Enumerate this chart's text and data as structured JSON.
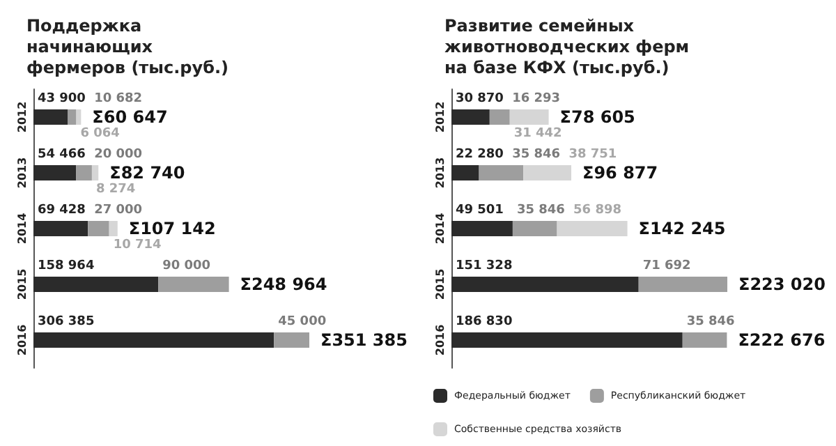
{
  "chart_data": [
    {
      "type": "bar",
      "orientation": "horizontal",
      "stacked": true,
      "title": "Поддержка\nначинающих\nфермеров (тыс.руб.)",
      "categories": [
        "2012",
        "2013",
        "2014",
        "2015",
        "2016"
      ],
      "tick_labels": "y",
      "data_labels": true,
      "grid": false,
      "series": [
        {
          "color": "#2b2b2b",
          "values": [
            43900,
            54466,
            69428,
            158964,
            306385
          ]
        },
        {
          "color": "#9e9e9e",
          "values": [
            10682,
            20000,
            27000,
            90000,
            45000
          ]
        },
        {
          "color": "#d6d6d6",
          "values": [
            6064,
            8274,
            10714,
            null,
            null
          ]
        }
      ],
      "totals": [
        "Σ60 647",
        "Σ82 740",
        "Σ107 142",
        "Σ248 964",
        "Σ351 385"
      ]
    },
    {
      "type": "bar",
      "orientation": "horizontal",
      "stacked": true,
      "title": "Развитие семейных\nживотноводческих ферм\nна базе КФХ (тыс.руб.)",
      "categories": [
        "2012",
        "2013",
        "2014",
        "2015",
        "2016"
      ],
      "tick_labels": "y",
      "data_labels": true,
      "legend": "bottom",
      "grid": false,
      "series": [
        {
          "name": "Федеральный бюджет",
          "color": "#2b2b2b",
          "values": [
            30870,
            22280,
            49501,
            151328,
            186830
          ]
        },
        {
          "name": "Республиканский бюджет",
          "color": "#9e9e9e",
          "values": [
            16293,
            35846,
            35846,
            71692,
            35846
          ]
        },
        {
          "name": "Собственные средства хозяйств",
          "color": "#d6d6d6",
          "values": [
            31442,
            38751,
            56898,
            null,
            null
          ]
        }
      ],
      "totals": [
        "Σ78 605",
        "Σ96 877",
        "Σ142 245",
        "Σ223 020",
        "Σ222 676"
      ]
    }
  ]
}
